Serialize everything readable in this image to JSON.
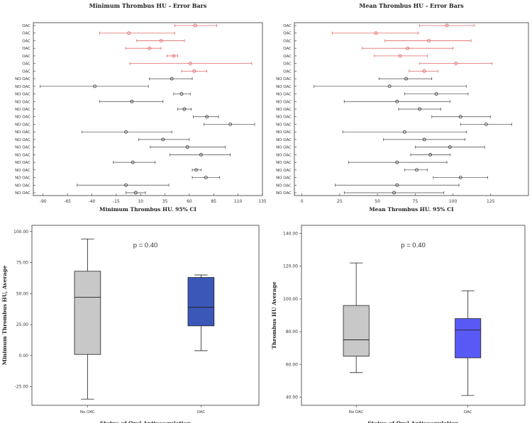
{
  "chart_data": [
    {
      "type": "scatter",
      "subtype": "error-bars",
      "title": "Minimum Thrombus HU - Error Bars",
      "xlabel": "Minimum Thrombus HU, 95% CI",
      "ylabel": "",
      "xlim": [
        -100,
        135
      ],
      "xticks": [
        -90,
        -65,
        -40,
        -15,
        10,
        35,
        60,
        85,
        110,
        135
      ],
      "xtick_labels": [
        "-90",
        "-65",
        "-40",
        "-15",
        "10",
        "35",
        "60",
        "85",
        "110",
        "135"
      ],
      "oac_color": "#e06a6a",
      "nooac_color": "#444444",
      "rows": [
        {
          "label": "OAC",
          "group": "oac",
          "mean": 66,
          "lo": 45,
          "hi": 88
        },
        {
          "label": "OAC",
          "group": "oac",
          "mean": -2,
          "lo": -32,
          "hi": 45
        },
        {
          "label": "OAC",
          "group": "oac",
          "mean": 31,
          "lo": 6,
          "hi": 55
        },
        {
          "label": "OAC",
          "group": "oac",
          "mean": 19,
          "lo": -5,
          "hi": 31
        },
        {
          "label": "OAC",
          "group": "oac",
          "mean": 44,
          "lo": 37,
          "hi": 48
        },
        {
          "label": "OAC",
          "group": "oac",
          "mean": 61,
          "lo": -1,
          "hi": 124
        },
        {
          "label": "OAC",
          "group": "oac",
          "mean": 65,
          "lo": 52,
          "hi": 78
        },
        {
          "label": "NO OAC",
          "group": "nooac",
          "mean": 42,
          "lo": 19,
          "hi": 63
        },
        {
          "label": "NO OAC",
          "group": "nooac",
          "mean": -37,
          "lo": -93,
          "hi": 18
        },
        {
          "label": "NO OAC",
          "group": "nooac",
          "mean": 52,
          "lo": 44,
          "hi": 61
        },
        {
          "label": "NO OAC",
          "group": "nooac",
          "mean": 1,
          "lo": -32,
          "hi": 33
        },
        {
          "label": "NO OAC",
          "group": "nooac",
          "mean": 55,
          "lo": 48,
          "hi": 62
        },
        {
          "label": "NO OAC",
          "group": "nooac",
          "mean": 78,
          "lo": 64,
          "hi": 90
        },
        {
          "label": "NO OAC",
          "group": "nooac",
          "mean": 102,
          "lo": 75,
          "hi": 127
        },
        {
          "label": "NO OAC",
          "group": "nooac",
          "mean": -5,
          "lo": -50,
          "hi": 42
        },
        {
          "label": "NO OAC",
          "group": "nooac",
          "mean": 33,
          "lo": 8,
          "hi": 60
        },
        {
          "label": "NO OAC",
          "group": "nooac",
          "mean": 58,
          "lo": 20,
          "hi": 97
        },
        {
          "label": "NO OAC",
          "group": "nooac",
          "mean": 72,
          "lo": 40,
          "hi": 102
        },
        {
          "label": "NO OAC",
          "group": "nooac",
          "mean": 2,
          "lo": -18,
          "hi": 25
        },
        {
          "label": "NO OAC",
          "group": "nooac",
          "mean": 67,
          "lo": 63,
          "hi": 72
        },
        {
          "label": "NO OAC",
          "group": "nooac",
          "mean": 77,
          "lo": 63,
          "hi": 91
        },
        {
          "label": "NO OAC",
          "group": "nooac",
          "mean": -5,
          "lo": -55,
          "hi": 39
        },
        {
          "label": "NO OAC",
          "group": "nooac",
          "mean": 5,
          "lo": -5,
          "hi": 15
        }
      ]
    },
    {
      "type": "scatter",
      "subtype": "error-bars",
      "title": "Mean Thrombus HU - Error Bars",
      "xlabel": "Mean Thrombus HU, 95% CI",
      "ylabel": "",
      "xlim": [
        -5,
        150
      ],
      "xticks": [
        0,
        25,
        50,
        75,
        100,
        125
      ],
      "xtick_labels": [
        "0",
        "25",
        "50",
        "75",
        "100",
        "125"
      ],
      "oac_color": "#e06a6a",
      "nooac_color": "#444444",
      "rows": [
        {
          "label": "OAC",
          "group": "oac",
          "mean": 96,
          "lo": 78,
          "hi": 114
        },
        {
          "label": "OAC",
          "group": "oac",
          "mean": 49,
          "lo": 20,
          "hi": 77
        },
        {
          "label": "OAC",
          "group": "oac",
          "mean": 84,
          "lo": 55,
          "hi": 112
        },
        {
          "label": "OAC",
          "group": "oac",
          "mean": 70,
          "lo": 40,
          "hi": 100
        },
        {
          "label": "OAC",
          "group": "oac",
          "mean": 65,
          "lo": 48,
          "hi": 83
        },
        {
          "label": "OAC",
          "group": "oac",
          "mean": 102,
          "lo": 78,
          "hi": 126
        },
        {
          "label": "OAC",
          "group": "oac",
          "mean": 81,
          "lo": 71,
          "hi": 90
        },
        {
          "label": "NO OAC",
          "group": "nooac",
          "mean": 69,
          "lo": 51,
          "hi": 86
        },
        {
          "label": "NO OAC",
          "group": "nooac",
          "mean": 58,
          "lo": 8,
          "hi": 109
        },
        {
          "label": "NO OAC",
          "group": "nooac",
          "mean": 89,
          "lo": 68,
          "hi": 110
        },
        {
          "label": "NO OAC",
          "group": "nooac",
          "mean": 63,
          "lo": 28,
          "hi": 98
        },
        {
          "label": "NO OAC",
          "group": "nooac",
          "mean": 78,
          "lo": 64,
          "hi": 92
        },
        {
          "label": "NO OAC",
          "group": "nooac",
          "mean": 105,
          "lo": 86,
          "hi": 125
        },
        {
          "label": "NO OAC",
          "group": "nooac",
          "mean": 122,
          "lo": 105,
          "hi": 139
        },
        {
          "label": "NO OAC",
          "group": "nooac",
          "mean": 68,
          "lo": 27,
          "hi": 109
        },
        {
          "label": "NO OAC",
          "group": "nooac",
          "mean": 81,
          "lo": 54,
          "hi": 108
        },
        {
          "label": "NO OAC",
          "group": "nooac",
          "mean": 98,
          "lo": 75,
          "hi": 121
        },
        {
          "label": "NO OAC",
          "group": "nooac",
          "mean": 85,
          "lo": 72,
          "hi": 98
        },
        {
          "label": "NO OAC",
          "group": "nooac",
          "mean": 63,
          "lo": 31,
          "hi": 96
        },
        {
          "label": "NO OAC",
          "group": "nooac",
          "mean": 76,
          "lo": 68,
          "hi": 83
        },
        {
          "label": "NO OAC",
          "group": "nooac",
          "mean": 105,
          "lo": 87,
          "hi": 123
        },
        {
          "label": "NO OAC",
          "group": "nooac",
          "mean": 63,
          "lo": 22,
          "hi": 104
        },
        {
          "label": "NO OAC",
          "group": "nooac",
          "mean": 61,
          "lo": 28,
          "hi": 94
        }
      ]
    },
    {
      "type": "boxplot",
      "title": "",
      "xlabel": "Status of Oral Anticoagulation",
      "ylabel": "Minimum Thrombus HU, Average",
      "ylim": [
        -40,
        105
      ],
      "yticks": [
        -25,
        0,
        25,
        50,
        75,
        100
      ],
      "ytick_labels": [
        "-25.00",
        "0.00",
        "25.00",
        "50.00",
        "75.00",
        "100.00"
      ],
      "annotation": "p = 0.40",
      "groups": [
        {
          "label": "No OAC",
          "color": "#c8c8c8",
          "min": -35,
          "q1": 1,
          "median": 47,
          "q3": 68,
          "max": 94
        },
        {
          "label": "OAC",
          "color": "#3b57b8",
          "min": 4,
          "q1": 24,
          "median": 39,
          "q3": 63,
          "max": 65
        }
      ]
    },
    {
      "type": "boxplot",
      "title": "",
      "xlabel": "Status of Oral Anticoagulation",
      "ylabel": "Thrombus HU Average",
      "ylim": [
        35,
        145
      ],
      "yticks": [
        40,
        60,
        80,
        100,
        120,
        140
      ],
      "ytick_labels": [
        "40.00",
        "60.00",
        "80.00",
        "100.00",
        "120.00",
        "140.00"
      ],
      "annotation": "p = 0.40",
      "groups": [
        {
          "label": "No OAC",
          "color": "#c8c8c8",
          "min": 55,
          "q1": 65,
          "median": 75,
          "q3": 96,
          "max": 122
        },
        {
          "label": "OAC",
          "color": "#5959f5",
          "min": 41,
          "q1": 64,
          "median": 81,
          "q3": 88,
          "max": 105
        }
      ]
    }
  ]
}
